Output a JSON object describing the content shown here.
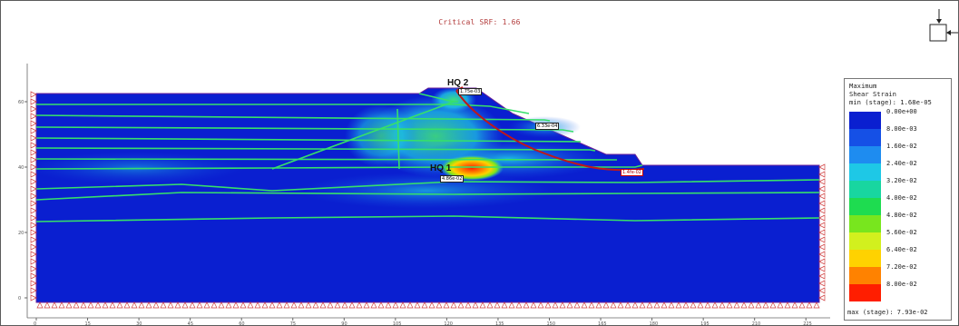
{
  "title": "Critical SRF: 1.66",
  "view_icon": "view-axis-icon",
  "legend": {
    "header": "Maximum\nShear Strain\nmin (stage): 1.68e-05",
    "levels": [
      {
        "label": "0.00e+00",
        "color": "#0a1fd0"
      },
      {
        "label": "8.00e-03",
        "color": "#1550e6"
      },
      {
        "label": "1.60e-02",
        "color": "#1e8cf0"
      },
      {
        "label": "2.40e-02",
        "color": "#1ec8e6"
      },
      {
        "label": "3.20e-02",
        "color": "#18d6a0"
      },
      {
        "label": "4.00e-02",
        "color": "#1edc50"
      },
      {
        "label": "4.80e-02",
        "color": "#78e61e"
      },
      {
        "label": "5.60e-02",
        "color": "#d2f01e"
      },
      {
        "label": "6.40e-02",
        "color": "#ffd200"
      },
      {
        "label": "7.20e-02",
        "color": "#ff8200"
      },
      {
        "label": "8.00e-02",
        "color": "#ff1e00"
      }
    ],
    "max_label": "max (stage): 7.93e-02"
  },
  "markers": {
    "hq1": {
      "label": "HQ 1",
      "value": "4.86e-02"
    },
    "hq2": {
      "label": "HQ 2",
      "value": "1.75e-03"
    },
    "slope_value": "6.33e-04",
    "toe_value": "1.4fe-02"
  },
  "y_axis_ticks": [
    "0",
    "20",
    "40",
    "60"
  ],
  "x_axis_ticks": [
    "0",
    "15",
    "30",
    "45",
    "60",
    "75",
    "90",
    "105",
    "120",
    "135",
    "150",
    "165",
    "180",
    "195",
    "210",
    "225"
  ]
}
